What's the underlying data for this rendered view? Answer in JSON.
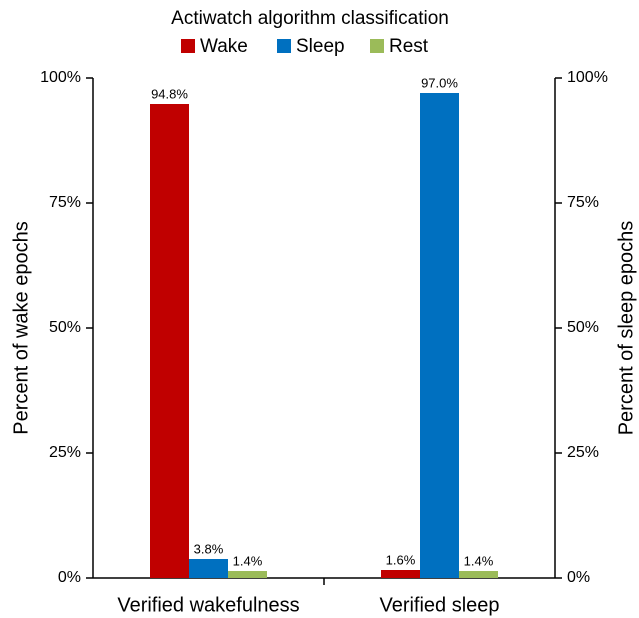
{
  "chart_data": {
    "type": "bar",
    "title": "Actiwatch algorithm classification",
    "categories": [
      "Verified wakefulness",
      "Verified sleep"
    ],
    "series": [
      {
        "name": "Wake",
        "color": "#c00000",
        "values": [
          94.8,
          1.6
        ],
        "value_labels": [
          "94.8%",
          "1.6%"
        ]
      },
      {
        "name": "Sleep",
        "color": "#0070c0",
        "values": [
          3.8,
          97.0
        ],
        "value_labels": [
          "3.8%",
          "97.0%"
        ]
      },
      {
        "name": "Rest",
        "color": "#9bbb59",
        "values": [
          1.4,
          1.4
        ],
        "value_labels": [
          "1.4%",
          "1.4%"
        ]
      }
    ],
    "y_label": "Percent of wake epochs",
    "y2_label": "Percent of sleep epochs",
    "ylim": [
      0,
      100
    ],
    "yticks": [
      {
        "value": 0,
        "label": "0%"
      },
      {
        "value": 25,
        "label": "25%"
      },
      {
        "value": 50,
        "label": "50%"
      },
      {
        "value": 75,
        "label": "75%"
      },
      {
        "value": 100,
        "label": "100%"
      }
    ],
    "y2lim": [
      0,
      100
    ],
    "y2ticks": [
      {
        "value": 0,
        "label": "0%"
      },
      {
        "value": 25,
        "label": "25%"
      },
      {
        "value": 50,
        "label": "50%"
      },
      {
        "value": 75,
        "label": "75%"
      },
      {
        "value": 100,
        "label": "100%"
      }
    ],
    "legend": "top",
    "grid": false
  }
}
